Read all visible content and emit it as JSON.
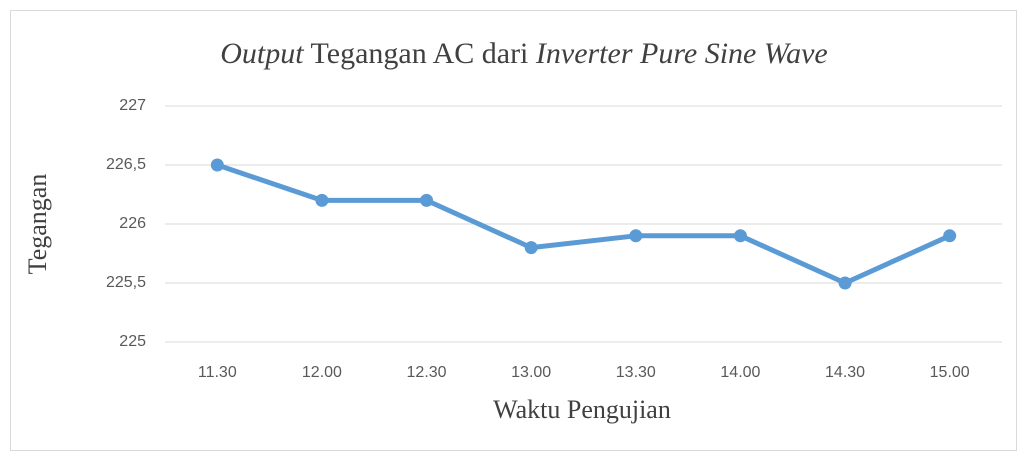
{
  "chart_data": {
    "type": "line",
    "title": [
      {
        "text": "Output",
        "italic": true
      },
      {
        "text": " Tegangan AC dari ",
        "italic": false
      },
      {
        "text": "Inverter Pure Sine Wave",
        "italic": true
      }
    ],
    "xlabel": "Waktu Pengujian",
    "ylabel": "Tegangan",
    "categories": [
      "11.30",
      "12.00",
      "12.30",
      "13.00",
      "13.30",
      "14.00",
      "14.30",
      "15.00"
    ],
    "series": [
      {
        "name": "Tegangan",
        "color": "#5b9bd5",
        "values": [
          226.5,
          226.2,
          226.2,
          225.8,
          225.9,
          225.9,
          225.5,
          225.9
        ]
      }
    ],
    "ylim": [
      225,
      227
    ],
    "yticks": [
      225,
      {
        "value": 225.5,
        "label": "225,5"
      },
      226,
      {
        "value": 226.5,
        "label": "226,5"
      },
      227
    ],
    "grid": true
  }
}
